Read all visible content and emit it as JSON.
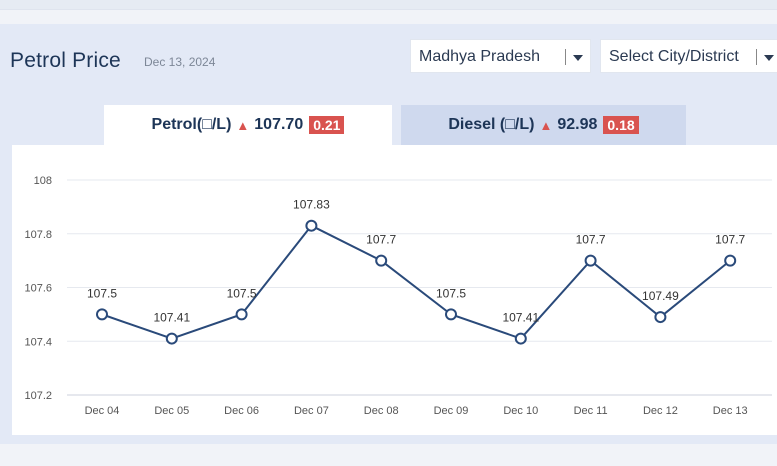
{
  "header": {
    "title": "Petrol Price",
    "date": "Dec 13, 2024"
  },
  "selectors": {
    "state": "Madhya Pradesh",
    "city": "Select City/District"
  },
  "tabs": {
    "petrol": {
      "label": "Petrol(□/L)",
      "price": "107.70",
      "change": "0.21"
    },
    "diesel": {
      "label": "Diesel (□/L)",
      "price": "92.98",
      "change": "0.18"
    }
  },
  "colors": {
    "accent": "#d9534f",
    "line": "#2a4a7a",
    "title": "#1d3557"
  },
  "chart_data": {
    "type": "line",
    "title": "",
    "xlabel": "",
    "ylabel": "",
    "categories": [
      "Dec 04",
      "Dec 05",
      "Dec 06",
      "Dec 07",
      "Dec 08",
      "Dec 09",
      "Dec 10",
      "Dec 11",
      "Dec 12",
      "Dec 13"
    ],
    "values": [
      107.5,
      107.41,
      107.5,
      107.83,
      107.7,
      107.5,
      107.41,
      107.7,
      107.49,
      107.7
    ],
    "data_labels": [
      "107.5",
      "107.41",
      "107.5",
      "107.83",
      "107.7",
      "107.5",
      "107.41",
      "107.7",
      "107.49",
      "107.7"
    ],
    "ylim": [
      107.2,
      108
    ],
    "yticks": [
      "107.2",
      "107.4",
      "107.6",
      "107.8",
      "108"
    ],
    "grid": true,
    "legend": "none"
  }
}
